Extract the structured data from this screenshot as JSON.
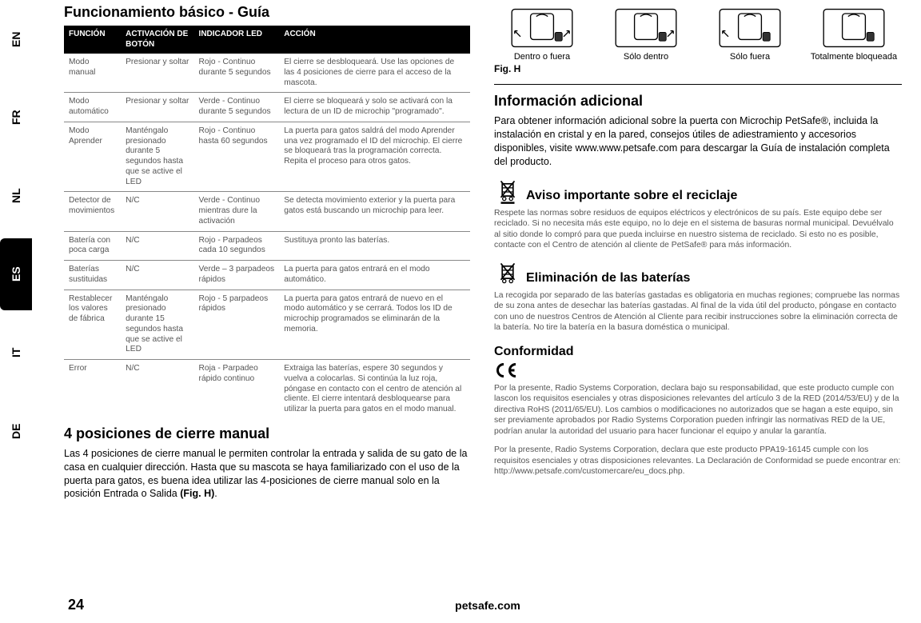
{
  "langs": [
    "EN",
    "FR",
    "NL",
    "ES",
    "IT",
    "DE"
  ],
  "active_lang": "ES",
  "left": {
    "title": "Funcionamiento básico - Guía",
    "tbl_head": [
      "FUNCIÓN",
      "ACTIVACIÓN DE BOTÓN",
      "INDICADOR LED",
      "ACCIÓN"
    ],
    "rows": [
      [
        "Modo manual",
        "Presionar y soltar",
        "Rojo - Continuo durante 5 segundos",
        "El cierre se desbloqueará. Use las opciones de las 4 posiciones de cierre para el acceso de la mascota."
      ],
      [
        "Modo automático",
        "Presionar y soltar",
        "Verde - Continuo durante 5 segundos",
        "El cierre se bloqueará y solo se activará con la lectura de un ID de microchip \"programado\"."
      ],
      [
        "Modo Aprender",
        "Manténgalo presionado durante 5 segundos hasta que se active el LED",
        "Rojo - Continuo hasta 60 segundos",
        "La puerta para gatos saldrá del modo Aprender una vez programado el ID del microchip. El cierre se bloqueará tras la programación correcta. Repita el proceso para otros gatos."
      ],
      [
        "Detector de movimientos",
        "N/C",
        "Verde - Continuo mientras dure la activación",
        "Se detecta movimiento exterior y la puerta para gatos está buscando un microchip para leer."
      ],
      [
        "Batería con poca carga",
        "N/C",
        "Rojo - Parpadeos cada 10 segundos",
        "Sustituya pronto las baterías."
      ],
      [
        "Baterías sustituidas",
        "N/C",
        "Verde – 3 parpadeos rápidos",
        "La puerta para gatos entrará en el modo automático."
      ],
      [
        "Restablecer los valores de fábrica",
        "Manténgalo presionado durante 15 segundos hasta que se active el LED",
        "Rojo - 5 parpadeos rápidos",
        "La puerta para gatos entrará de nuevo en el modo automático y se cerrará. Todos los ID de microchip programados se eliminarán de la memoria."
      ],
      [
        "Error",
        "N/C",
        "Roja - Parpadeo rápido continuo",
        "Extraiga las baterías, espere 30 segundos y vuelva a colocarlas. Si continúa la luz roja, póngase en contacto con el centro de atención al cliente. El cierre intentará desbloquearse para utilizar la puerta para gatos en el modo manual."
      ]
    ],
    "pos_title": "4 posiciones de cierre manual",
    "pos_body": "Las 4 posiciones de cierre manual le permiten controlar la entrada y salida de su gato de la casa en cualquier dirección. Hasta que su mascota se haya familiarizado con el uso de la puerta para gatos, es buena idea utilizar las 4-posiciones de cierre manual solo en la posición Entrada o Salida ",
    "pos_fig": "(Fig. H)"
  },
  "right": {
    "locks": [
      "Dentro o fuera",
      "Sólo dentro",
      "Sólo fuera",
      "Totalmente bloqueada"
    ],
    "fig": "Fig. H",
    "info_title": "Información adicional",
    "info_body": "Para obtener información adicional sobre la puerta con Microchip PetSafe®, incluida la instalación en cristal y en la pared, consejos útiles de adiestramiento y accesorios disponibles, visite www.www.petsafe.com para descargar la Guía de instalación completa del producto.",
    "recycle_title": "Aviso importante sobre el reciclaje",
    "recycle_body": "Respete las normas sobre residuos de equipos eléctricos y electrónicos de su país. Este equipo debe ser reciclado. Si no necesita más este equipo, no lo deje en el sistema de basuras normal municipal. Devuélvalo al sitio donde lo compró para que pueda incluirse en nuestro sistema de reciclado. Si esto no es posible, contacte con el Centro de atención al cliente de PetSafe® para más información.",
    "battery_title": "Eliminación de las baterías",
    "battery_body": "La recogida por separado de las baterías gastadas es obligatoria en muchas regiones; compruebe las normas de su zona antes de desechar las baterías gastadas. Al final de la vida útil del producto, póngase en contacto con uno de nuestros Centros de Atención al Cliente para recibir instrucciones sobre la eliminación correcta de la batería. No tire la batería en la basura doméstica o municipal.",
    "conf_title": "Conformidad",
    "conf_p1": "Por la presente, Radio Systems Corporation, declara bajo su responsabilidad, que este producto cumple con lascon los requisitos esenciales y otras disposiciones relevantes del artículo 3 de la RED (2014/53/EU) y de la directiva RoHS (2011/65/EU). Los cambios o modificaciones no autorizados que se hagan a este equipo, sin ser previamente aprobados por Radio Systems Corporation pueden infringir las normativas RED de la UE, podrían anular la autoridad del usuario para hacer funcionar el equipo y anular la garantía.",
    "conf_p2": "Por la presente, Radio Systems Corporation, declara que este producto PPA19-16145 cumple con los requisitos esenciales y otras disposiciones relevantes. La Declaración de Conformidad se puede encontrar en: http://www.petsafe.com/customercare/eu_docs.php."
  },
  "footer": {
    "page": "24",
    "site": "petsafe.com"
  },
  "colors": {
    "ink": "#000000",
    "muted": "#555555"
  }
}
